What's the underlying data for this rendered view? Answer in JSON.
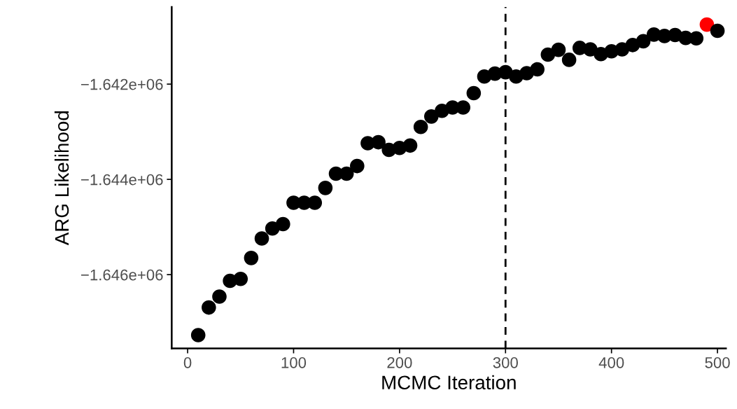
{
  "chart_data": {
    "type": "scatter",
    "xlabel": "MCMC Iteration",
    "ylabel": "ARG Likelihood",
    "x": [
      10,
      20,
      30,
      40,
      50,
      60,
      70,
      80,
      90,
      100,
      110,
      120,
      130,
      140,
      150,
      160,
      170,
      180,
      190,
      200,
      210,
      220,
      230,
      240,
      250,
      260,
      270,
      280,
      290,
      300,
      310,
      320,
      330,
      340,
      350,
      360,
      370,
      380,
      390,
      400,
      410,
      420,
      430,
      440,
      450,
      460,
      470,
      480,
      490,
      500
    ],
    "values": [
      -1647270,
      -1646690,
      -1646460,
      -1646130,
      -1646090,
      -1645650,
      -1645240,
      -1645030,
      -1644940,
      -1644490,
      -1644490,
      -1644490,
      -1644180,
      -1643880,
      -1643880,
      -1643720,
      -1643240,
      -1643220,
      -1643380,
      -1643340,
      -1643290,
      -1642900,
      -1642680,
      -1642560,
      -1642490,
      -1642490,
      -1642190,
      -1641840,
      -1641780,
      -1641750,
      -1641840,
      -1641770,
      -1641690,
      -1641380,
      -1641280,
      -1641490,
      -1641240,
      -1641270,
      -1641370,
      -1641310,
      -1641270,
      -1641180,
      -1641100,
      -1640960,
      -1640990,
      -1640970,
      -1641030,
      -1641040,
      -1640750,
      -1640880
    ],
    "colors": [
      "#000000",
      "#000000",
      "#000000",
      "#000000",
      "#000000",
      "#000000",
      "#000000",
      "#000000",
      "#000000",
      "#000000",
      "#000000",
      "#000000",
      "#000000",
      "#000000",
      "#000000",
      "#000000",
      "#000000",
      "#000000",
      "#000000",
      "#000000",
      "#000000",
      "#000000",
      "#000000",
      "#000000",
      "#000000",
      "#000000",
      "#000000",
      "#000000",
      "#000000",
      "#000000",
      "#000000",
      "#000000",
      "#000000",
      "#000000",
      "#000000",
      "#000000",
      "#000000",
      "#000000",
      "#000000",
      "#000000",
      "#000000",
      "#000000",
      "#000000",
      "#000000",
      "#000000",
      "#000000",
      "#000000",
      "#000000",
      "#ff0000",
      "#000000"
    ],
    "marker": "circle",
    "xlim": [
      -15,
      508
    ],
    "xticks": [
      0,
      100,
      200,
      300,
      400,
      500
    ],
    "ylim": [
      -1647550,
      -1640380
    ],
    "yticks": [
      {
        "value": -1646000,
        "label": "−1.646e+06"
      },
      {
        "value": -1644000,
        "label": "−1.644e+06"
      },
      {
        "value": -1642000,
        "label": "−1.642e+06"
      }
    ],
    "ref_lines": [
      {
        "axis": "x",
        "value": 300,
        "line_style": "dashed",
        "color": "#000000"
      }
    ],
    "grid": false,
    "legend": false
  }
}
